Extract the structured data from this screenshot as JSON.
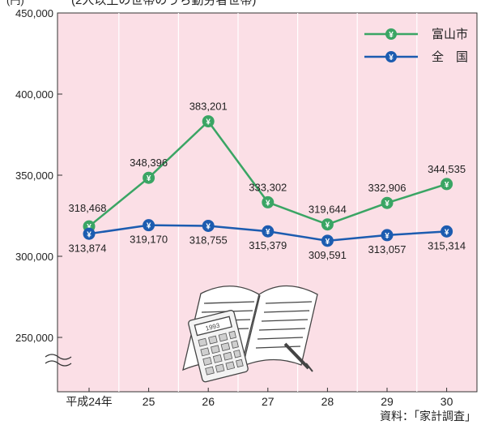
{
  "header": {
    "unit": "(円)",
    "title": "(2人以上の世帯のうち勤労者世帯)"
  },
  "chart_data": {
    "type": "line",
    "categories": [
      "平成24年",
      "25",
      "26",
      "27",
      "28",
      "29",
      "30"
    ],
    "series": [
      {
        "name": "富山市",
        "color": "#3aa564",
        "values": [
          318468,
          348396,
          383201,
          333302,
          319644,
          332906,
          344535
        ],
        "labels": [
          "318,468",
          "348,396",
          "383,201",
          "333,302",
          "319,644",
          "332,906",
          "344,535"
        ]
      },
      {
        "name": "全　国",
        "color": "#1c5cb0",
        "values": [
          313874,
          319170,
          318755,
          315379,
          309591,
          313057,
          315314
        ],
        "labels": [
          "313,874",
          "319,170",
          "318,755",
          "315,379",
          "309,591",
          "313,057",
          "315,314"
        ]
      }
    ],
    "y_ticks": [
      {
        "value": 450000,
        "label": "450,000"
      },
      {
        "value": 400000,
        "label": "400,000"
      },
      {
        "value": 350000,
        "label": "350,000"
      },
      {
        "value": 300000,
        "label": "300,000"
      },
      {
        "value": 250000,
        "label": "250,000"
      }
    ],
    "ylim": [
      240000,
      450000
    ],
    "axis_break": true,
    "grid": "vertical",
    "legend_position": "top-right",
    "marker_symbol": "¥",
    "plot_background": "#fbdfe6"
  },
  "source": "資料：「家計調査」"
}
